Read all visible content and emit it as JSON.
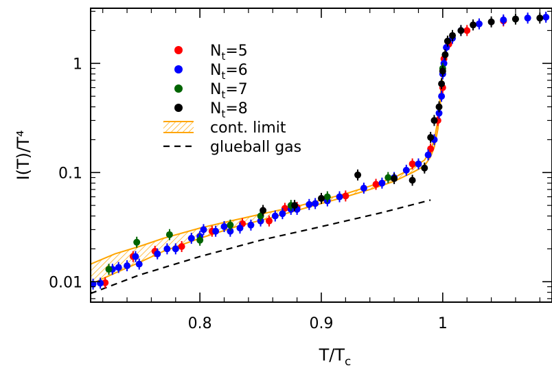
{
  "chart_data": {
    "type": "scatter",
    "xlabel": "T/T",
    "xlabel_sub": "c",
    "ylabel": "I(T)/T⁴",
    "xscale": "linear",
    "yscale": "log",
    "xlim": [
      0.71,
      1.09
    ],
    "ylim": [
      0.0065,
      3.2
    ],
    "x_ticks": [
      0.8,
      0.9,
      1.0
    ],
    "x_tick_labels": [
      "0.8",
      "0.9",
      "1"
    ],
    "y_ticks": [
      0.01,
      0.1,
      1
    ],
    "y_tick_labels": [
      "0.01",
      "0.1",
      "1"
    ],
    "legend_position": "top-left",
    "legend": [
      {
        "label": "N",
        "sub": "t",
        "suffix": "=5",
        "color": "#ff0000",
        "kind": "marker"
      },
      {
        "label": "N",
        "sub": "t",
        "suffix": "=6",
        "color": "#0000ff",
        "kind": "marker"
      },
      {
        "label": "N",
        "sub": "t",
        "suffix": "=7",
        "color": "#006400",
        "kind": "marker"
      },
      {
        "label": "N",
        "sub": "t",
        "suffix": "=8",
        "color": "#000000",
        "kind": "marker"
      },
      {
        "label": "cont. limit",
        "color": "#ffa500",
        "kind": "band"
      },
      {
        "label": "glueball gas",
        "color": "#000000",
        "kind": "dashed"
      }
    ],
    "series": [
      {
        "name": "Nt=5",
        "color": "#ff0000",
        "points": [
          [
            0.722,
            0.0098
          ],
          [
            0.745,
            0.017
          ],
          [
            0.763,
            0.019
          ],
          [
            0.785,
            0.021
          ],
          [
            0.81,
            0.029
          ],
          [
            0.835,
            0.034
          ],
          [
            0.857,
            0.036
          ],
          [
            0.87,
            0.047
          ],
          [
            0.88,
            0.048
          ],
          [
            0.92,
            0.061
          ],
          [
            0.945,
            0.078
          ],
          [
            0.975,
            0.12
          ],
          [
            0.99,
            0.165
          ],
          [
            0.996,
            0.3
          ],
          [
            1.0,
            0.6
          ],
          [
            1.001,
            1.1
          ],
          [
            1.005,
            1.5
          ],
          [
            1.02,
            2.0
          ],
          [
            1.05,
            2.45
          ]
        ]
      },
      {
        "name": "Nt=6",
        "color": "#0000ff",
        "points": [
          [
            0.712,
            0.0095
          ],
          [
            0.718,
            0.0097
          ],
          [
            0.728,
            0.013
          ],
          [
            0.733,
            0.0135
          ],
          [
            0.74,
            0.014
          ],
          [
            0.747,
            0.017
          ],
          [
            0.75,
            0.0145
          ],
          [
            0.765,
            0.018
          ],
          [
            0.773,
            0.02
          ],
          [
            0.78,
            0.02
          ],
          [
            0.793,
            0.025
          ],
          [
            0.8,
            0.026
          ],
          [
            0.803,
            0.03
          ],
          [
            0.813,
            0.029
          ],
          [
            0.82,
            0.032
          ],
          [
            0.825,
            0.029
          ],
          [
            0.833,
            0.031
          ],
          [
            0.842,
            0.033
          ],
          [
            0.85,
            0.036
          ],
          [
            0.862,
            0.04
          ],
          [
            0.868,
            0.042
          ],
          [
            0.875,
            0.046
          ],
          [
            0.88,
            0.046
          ],
          [
            0.89,
            0.051
          ],
          [
            0.895,
            0.052
          ],
          [
            0.905,
            0.055
          ],
          [
            0.915,
            0.06
          ],
          [
            0.935,
            0.072
          ],
          [
            0.95,
            0.08
          ],
          [
            0.96,
            0.09
          ],
          [
            0.97,
            0.105
          ],
          [
            0.98,
            0.12
          ],
          [
            0.988,
            0.145
          ],
          [
            0.993,
            0.2
          ],
          [
            0.997,
            0.35
          ],
          [
            0.999,
            0.5
          ],
          [
            1.0,
            0.8
          ],
          [
            1.001,
            1.0
          ],
          [
            1.003,
            1.4
          ],
          [
            1.008,
            1.7
          ],
          [
            1.015,
            2.0
          ],
          [
            1.03,
            2.3
          ],
          [
            1.05,
            2.5
          ],
          [
            1.07,
            2.6
          ],
          [
            1.085,
            2.65
          ]
        ]
      },
      {
        "name": "Nt=7",
        "color": "#006400",
        "points": [
          [
            0.725,
            0.013
          ],
          [
            0.748,
            0.023
          ],
          [
            0.775,
            0.027
          ],
          [
            0.8,
            0.024
          ],
          [
            0.825,
            0.033
          ],
          [
            0.85,
            0.04
          ],
          [
            0.875,
            0.05
          ],
          [
            0.905,
            0.06
          ],
          [
            0.955,
            0.09
          ],
          [
            1.0,
            0.9
          ],
          [
            1.06,
            2.55
          ]
        ]
      },
      {
        "name": "Nt=8",
        "color": "#000000",
        "points": [
          [
            0.852,
            0.045
          ],
          [
            0.878,
            0.05
          ],
          [
            0.9,
            0.058
          ],
          [
            0.93,
            0.095
          ],
          [
            0.96,
            0.088
          ],
          [
            0.975,
            0.085
          ],
          [
            0.985,
            0.11
          ],
          [
            0.99,
            0.21
          ],
          [
            0.993,
            0.3
          ],
          [
            0.997,
            0.4
          ],
          [
            0.999,
            0.65
          ],
          [
            1.0,
            0.85
          ],
          [
            1.002,
            1.2
          ],
          [
            1.004,
            1.6
          ],
          [
            1.008,
            1.8
          ],
          [
            1.015,
            2.0
          ],
          [
            1.025,
            2.25
          ],
          [
            1.04,
            2.4
          ],
          [
            1.06,
            2.55
          ],
          [
            1.08,
            2.6
          ]
        ]
      }
    ],
    "band": {
      "name": "cont. limit",
      "color": "#ffa500",
      "x": [
        0.71,
        0.73,
        0.75,
        0.77,
        0.8,
        0.83,
        0.86,
        0.88,
        0.9,
        0.92,
        0.94,
        0.96,
        0.975,
        0.985,
        0.99,
        0.993,
        0.996,
        0.998,
        1.0
      ],
      "upper": [
        0.0145,
        0.018,
        0.021,
        0.025,
        0.031,
        0.037,
        0.044,
        0.049,
        0.056,
        0.064,
        0.075,
        0.09,
        0.11,
        0.13,
        0.16,
        0.2,
        0.3,
        0.5,
        0.95
      ],
      "lower": [
        0.0095,
        0.012,
        0.015,
        0.019,
        0.025,
        0.032,
        0.039,
        0.045,
        0.052,
        0.06,
        0.07,
        0.083,
        0.1,
        0.115,
        0.14,
        0.17,
        0.25,
        0.42,
        0.85
      ]
    },
    "glueball": {
      "name": "glueball gas",
      "x": [
        0.71,
        0.75,
        0.8,
        0.85,
        0.9,
        0.95,
        0.99
      ],
      "y": [
        0.0078,
        0.0115,
        0.017,
        0.024,
        0.032,
        0.043,
        0.056
      ]
    }
  }
}
